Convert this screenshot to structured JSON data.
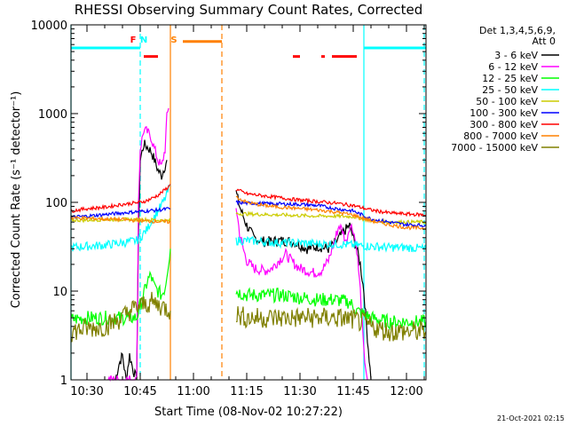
{
  "chart_data": {
    "type": "line",
    "title": "RHESSI Observing Summary Count Rates, Corrected",
    "xlabel": "Start Time (08-Nov-02 10:27:22)",
    "ylabel": "Corrected Count Rate (s⁻¹ detector⁻¹)",
    "ylog": true,
    "ylim": [
      1,
      10000
    ],
    "xlim": [
      "10:25:30",
      "12:05:30"
    ],
    "x_ticks": [
      "10:30",
      "10:45",
      "11:00",
      "11:15",
      "11:30",
      "11:45",
      "12:00"
    ],
    "y_ticks": [
      "1",
      "10",
      "100",
      "1000",
      "10000"
    ],
    "legend_header": [
      "Det 1,3,4,5,6,9,",
      "Att 0"
    ],
    "legend_position": "right",
    "series": [
      {
        "name": "3 - 6 keV",
        "color": "#000000",
        "segments": [
          [
            [
              "10:38",
              1
            ],
            [
              "10:39",
              1.5
            ],
            [
              "10:40",
              1.9
            ],
            [
              "10:41",
              1
            ],
            [
              "10:42",
              1.9
            ],
            [
              "10:43",
              1.3
            ],
            [
              "10:44",
              1
            ],
            [
              "10:44:30",
              40
            ],
            [
              "10:45",
              300
            ],
            [
              "10:46",
              450
            ],
            [
              "10:47",
              420
            ],
            [
              "10:48",
              380
            ],
            [
              "10:49",
              300
            ],
            [
              "10:50",
              230
            ],
            [
              "10:51",
              200
            ],
            [
              "10:52",
              260
            ],
            [
              "10:52:30",
              300
            ]
          ],
          [
            [
              "11:12",
              130
            ],
            [
              "11:13",
              90
            ],
            [
              "11:14",
              70
            ],
            [
              "11:15",
              55
            ],
            [
              "11:17",
              40
            ],
            [
              "11:20",
              36
            ],
            [
              "11:25",
              37
            ],
            [
              "11:28",
              36
            ],
            [
              "11:30",
              33
            ],
            [
              "11:32",
              30
            ],
            [
              "11:35",
              32
            ],
            [
              "11:38",
              30
            ],
            [
              "11:40",
              35
            ],
            [
              "11:42",
              45
            ],
            [
              "11:44",
              55
            ],
            [
              "11:45",
              40
            ],
            [
              "11:46",
              30
            ],
            [
              "11:47",
              20
            ],
            [
              "11:48",
              10
            ],
            [
              "11:49",
              3
            ],
            [
              "11:50",
              1
            ]
          ]
        ]
      },
      {
        "name": "6 - 12 keV",
        "color": "#ff00ff",
        "segments": [
          [
            [
              "10:36",
              1
            ],
            [
              "10:44",
              1
            ],
            [
              "10:44:30",
              100
            ],
            [
              "10:45",
              400
            ],
            [
              "10:46",
              650
            ],
            [
              "10:47",
              620
            ],
            [
              "10:48",
              550
            ],
            [
              "10:49",
              400
            ],
            [
              "10:50",
              300
            ],
            [
              "10:51",
              250
            ],
            [
              "10:52",
              400
            ],
            [
              "10:52:30",
              900
            ],
            [
              "10:53",
              1150
            ]
          ],
          [
            [
              "11:12",
              90
            ],
            [
              "11:13",
              45
            ],
            [
              "11:14",
              30
            ],
            [
              "11:15",
              22
            ],
            [
              "11:17",
              18
            ],
            [
              "11:20",
              17
            ],
            [
              "11:22",
              18
            ],
            [
              "11:24",
              22
            ],
            [
              "11:26",
              26
            ],
            [
              "11:28",
              21
            ],
            [
              "11:30",
              18
            ],
            [
              "11:32",
              17
            ],
            [
              "11:34",
              16
            ],
            [
              "11:36",
              17
            ],
            [
              "11:38",
              22
            ],
            [
              "11:40",
              40
            ],
            [
              "11:41",
              55
            ],
            [
              "11:42",
              48
            ],
            [
              "11:43",
              35
            ],
            [
              "11:44",
              55
            ],
            [
              "11:45",
              50
            ],
            [
              "11:46",
              30
            ],
            [
              "11:47",
              10
            ],
            [
              "11:48",
              2
            ],
            [
              "11:49",
              1
            ]
          ]
        ]
      },
      {
        "name": "12 - 25 keV",
        "color": "#00ff00",
        "segments": [
          [
            [
              "10:25:30",
              4.8
            ],
            [
              "10:30",
              5
            ],
            [
              "10:35",
              5
            ],
            [
              "10:40",
              5
            ],
            [
              "10:44",
              5
            ],
            [
              "10:45",
              7
            ],
            [
              "10:46",
              9
            ],
            [
              "10:47",
              13
            ],
            [
              "10:48",
              15
            ],
            [
              "10:49",
              11
            ],
            [
              "10:50",
              10
            ],
            [
              "10:51",
              9
            ],
            [
              "10:52",
              11
            ],
            [
              "10:53",
              22
            ],
            [
              "10:53:30",
              30
            ]
          ],
          [
            [
              "11:12",
              10
            ],
            [
              "11:15",
              9
            ],
            [
              "11:20",
              9
            ],
            [
              "11:25",
              9
            ],
            [
              "11:30",
              8.5
            ],
            [
              "11:35",
              8
            ],
            [
              "11:40",
              8
            ],
            [
              "11:44",
              7.5
            ],
            [
              "11:46",
              6
            ],
            [
              "11:48",
              5.5
            ],
            [
              "11:50",
              5
            ],
            [
              "11:55",
              4.5
            ],
            [
              "12:00",
              4.5
            ],
            [
              "12:05:30",
              4.5
            ]
          ]
        ]
      },
      {
        "name": "25 - 50 keV",
        "color": "#00ffff",
        "segments": [
          [
            [
              "10:25:30",
              31
            ],
            [
              "10:30",
              32
            ],
            [
              "10:35",
              33
            ],
            [
              "10:40",
              35
            ],
            [
              "10:44",
              37
            ],
            [
              "10:45",
              40
            ],
            [
              "10:46",
              45
            ],
            [
              "10:47",
              50
            ],
            [
              "10:48",
              60
            ],
            [
              "10:50",
              80
            ],
            [
              "10:52",
              110
            ],
            [
              "10:53",
              140
            ],
            [
              "10:53:30",
              160
            ]
          ],
          [
            [
              "11:12",
              37
            ],
            [
              "11:15",
              37
            ],
            [
              "11:20",
              36
            ],
            [
              "11:25",
              35
            ],
            [
              "11:30",
              35
            ],
            [
              "11:35",
              34
            ],
            [
              "11:40",
              34
            ],
            [
              "11:45",
              33
            ],
            [
              "11:50",
              32
            ],
            [
              "11:55",
              31
            ],
            [
              "12:00",
              31
            ],
            [
              "12:05:30",
              30
            ]
          ]
        ]
      },
      {
        "name": "50 - 100 keV",
        "color": "#cccc00",
        "segments": [
          [
            [
              "10:25:30",
              63
            ],
            [
              "10:30",
              63
            ],
            [
              "10:35",
              64
            ],
            [
              "10:40",
              64
            ],
            [
              "10:45",
              64
            ],
            [
              "10:50",
              63
            ],
            [
              "10:53:30",
              62
            ]
          ],
          [
            [
              "11:12",
              75
            ],
            [
              "11:15",
              74
            ],
            [
              "11:20",
              73
            ],
            [
              "11:25",
              72
            ],
            [
              "11:30",
              71
            ],
            [
              "11:35",
              70
            ],
            [
              "11:40",
              70
            ],
            [
              "11:45",
              69
            ],
            [
              "11:50",
              62
            ],
            [
              "11:55",
              60
            ],
            [
              "12:00",
              60
            ],
            [
              "12:05:30",
              60
            ]
          ]
        ]
      },
      {
        "name": "100 - 300 keV",
        "color": "#0000ff",
        "segments": [
          [
            [
              "10:25:30",
              68
            ],
            [
              "10:30",
              70
            ],
            [
              "10:35",
              73
            ],
            [
              "10:40",
              76
            ],
            [
              "10:45",
              79
            ],
            [
              "10:50",
              82
            ],
            [
              "10:53:30",
              85
            ]
          ],
          [
            [
              "11:12",
              100
            ],
            [
              "11:15",
              98
            ],
            [
              "11:20",
              97
            ],
            [
              "11:25",
              96
            ],
            [
              "11:30",
              95
            ],
            [
              "11:35",
              92
            ],
            [
              "11:40",
              85
            ],
            [
              "11:45",
              80
            ],
            [
              "11:50",
              65
            ],
            [
              "11:55",
              60
            ],
            [
              "12:00",
              56
            ],
            [
              "12:05:30",
              55
            ]
          ]
        ]
      },
      {
        "name": "300 - 800 keV",
        "color": "#ff0000",
        "segments": [
          [
            [
              "10:25:30",
              80
            ],
            [
              "10:30",
              85
            ],
            [
              "10:35",
              88
            ],
            [
              "10:40",
              95
            ],
            [
              "10:45",
              100
            ],
            [
              "10:47",
              105
            ],
            [
              "10:50",
              120
            ],
            [
              "10:53",
              150
            ],
            [
              "10:53:30",
              160
            ]
          ],
          [
            [
              "11:12",
              140
            ],
            [
              "11:15",
              125
            ],
            [
              "11:20",
              118
            ],
            [
              "11:25",
              112
            ],
            [
              "11:30",
              106
            ],
            [
              "11:35",
              102
            ],
            [
              "11:40",
              98
            ],
            [
              "11:45",
              92
            ],
            [
              "11:50",
              82
            ],
            [
              "11:55",
              76
            ],
            [
              "12:00",
              74
            ],
            [
              "12:05:30",
              72
            ]
          ]
        ]
      },
      {
        "name": "800 - 7000 keV",
        "color": "#ff8000",
        "segments": [
          [
            [
              "10:25:30",
              67
            ],
            [
              "10:30",
              66
            ],
            [
              "10:35",
              65
            ],
            [
              "10:40",
              64
            ],
            [
              "10:45",
              62
            ],
            [
              "10:50",
              61
            ],
            [
              "10:53:30",
              60
            ]
          ],
          [
            [
              "11:12",
              115
            ],
            [
              "11:15",
              100
            ],
            [
              "11:20",
              92
            ],
            [
              "11:25",
              88
            ],
            [
              "11:30",
              85
            ],
            [
              "11:35",
              82
            ],
            [
              "11:40",
              78
            ],
            [
              "11:45",
              72
            ],
            [
              "11:50",
              62
            ],
            [
              "11:55",
              56
            ],
            [
              "12:00",
              52
            ],
            [
              "12:05:30",
              51
            ]
          ]
        ]
      },
      {
        "name": "7000 - 15000 keV",
        "color": "#808000",
        "segments": [
          [
            [
              "10:25:30",
              3.5
            ],
            [
              "10:30",
              3.8
            ],
            [
              "10:35",
              4
            ],
            [
              "10:40",
              5
            ],
            [
              "10:42",
              6
            ],
            [
              "10:44",
              6.5
            ],
            [
              "10:46",
              7
            ],
            [
              "10:48",
              7.5
            ],
            [
              "10:50",
              7
            ],
            [
              "10:52",
              6.5
            ],
            [
              "10:53:30",
              6
            ]
          ],
          [
            [
              "11:12",
              5.5
            ],
            [
              "11:15",
              5
            ],
            [
              "11:20",
              5
            ],
            [
              "11:25",
              5
            ],
            [
              "11:30",
              5
            ],
            [
              "11:35",
              5
            ],
            [
              "11:40",
              5
            ],
            [
              "11:45",
              4.8
            ],
            [
              "11:50",
              4
            ],
            [
              "11:55",
              3.5
            ],
            [
              "12:00",
              3.5
            ],
            [
              "12:05:30",
              3.5
            ]
          ]
        ]
      }
    ],
    "orbit_flags": [
      {
        "label": "",
        "color": "#00ffff",
        "ranges": [
          [
            "10:25:30",
            "10:45"
          ],
          [
            "11:48",
            "12:05:30"
          ]
        ],
        "level": 5500
      },
      {
        "label": "N",
        "color": "#00ffff",
        "at": "10:46"
      },
      {
        "label": "F",
        "color": "#ff0000",
        "at": "10:43"
      },
      {
        "label": "",
        "color": "#ff0000",
        "ranges": [
          [
            "10:46",
            "10:50"
          ],
          [
            "11:28",
            "11:30"
          ],
          [
            "11:36",
            "11:37"
          ],
          [
            "11:39",
            "11:46"
          ]
        ],
        "level": 4400
      },
      {
        "label": "S",
        "color": "#ff8000",
        "at": "10:54:30"
      },
      {
        "label": "",
        "color": "#ff8000",
        "ranges": [
          [
            "10:57",
            "11:08"
          ]
        ],
        "level": 6500
      }
    ],
    "vertical_lines": [
      {
        "x": "10:25:30",
        "color": "#00ffff",
        "dashed": false
      },
      {
        "x": "10:45",
        "color": "#00ffff",
        "dashed": true
      },
      {
        "x": "10:53:30",
        "color": "#ff8000",
        "dashed": false
      },
      {
        "x": "11:08",
        "color": "#ff8000",
        "dashed": true
      },
      {
        "x": "11:48",
        "color": "#00ffff",
        "dashed": false
      },
      {
        "x": "12:05",
        "color": "#00ffff",
        "dashed": true
      }
    ],
    "footer_timestamp": "21-Oct-2021 02:15"
  }
}
